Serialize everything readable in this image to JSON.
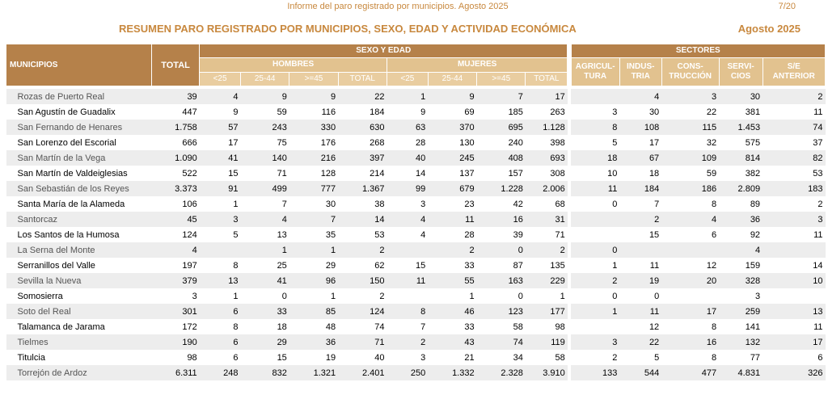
{
  "header": {
    "report_title": "Informe del paro registrado por municipios. Agosto 2025",
    "page_number": "7/20",
    "main_title": "RESUMEN PARO REGISTRADO POR MUNICIPIOS, SEXO, EDAD Y ACTIVIDAD ECONÓMICA",
    "period": "Agosto 2025"
  },
  "table_headers": {
    "municipios": "MUNICIPIOS",
    "total": "TOTAL",
    "sexo_edad": "SEXO Y EDAD",
    "sectores": "SECTORES",
    "hombres": "HOMBRES",
    "mujeres": "MUJERES",
    "age_lt25": "<25",
    "age_25_44": "25-44",
    "age_ge45": ">=45",
    "sub_total": "TOTAL",
    "agricultura_1": "AGRICUL-",
    "agricultura_2": "TURA",
    "industria_1": "INDUS-",
    "industria_2": "TRIA",
    "construccion_1": "CONS-",
    "construccion_2": "TRUCCIÓN",
    "servicios_1": "SERVI-",
    "servicios_2": "CIOS",
    "sin_empleo_1": "S/E",
    "sin_empleo_2": "ANTERIOR"
  },
  "rows": [
    {
      "municipio": "Rozas de Puerto Real",
      "total": "39",
      "h_lt25": "4",
      "h_25_44": "9",
      "h_ge45": "9",
      "h_total": "22",
      "m_lt25": "1",
      "m_25_44": "9",
      "m_ge45": "7",
      "m_total": "17",
      "agricultura": "",
      "industria": "4",
      "construccion": "3",
      "servicios": "30",
      "sin_empleo": "2"
    },
    {
      "municipio": "San Agustín de Guadalix",
      "total": "447",
      "h_lt25": "9",
      "h_25_44": "59",
      "h_ge45": "116",
      "h_total": "184",
      "m_lt25": "9",
      "m_25_44": "69",
      "m_ge45": "185",
      "m_total": "263",
      "agricultura": "3",
      "industria": "30",
      "construccion": "22",
      "servicios": "381",
      "sin_empleo": "11"
    },
    {
      "municipio": "San Fernando de Henares",
      "total": "1.758",
      "h_lt25": "57",
      "h_25_44": "243",
      "h_ge45": "330",
      "h_total": "630",
      "m_lt25": "63",
      "m_25_44": "370",
      "m_ge45": "695",
      "m_total": "1.128",
      "agricultura": "8",
      "industria": "108",
      "construccion": "115",
      "servicios": "1.453",
      "sin_empleo": "74"
    },
    {
      "municipio": "San Lorenzo del Escorial",
      "total": "666",
      "h_lt25": "17",
      "h_25_44": "75",
      "h_ge45": "176",
      "h_total": "268",
      "m_lt25": "28",
      "m_25_44": "130",
      "m_ge45": "240",
      "m_total": "398",
      "agricultura": "5",
      "industria": "17",
      "construccion": "32",
      "servicios": "575",
      "sin_empleo": "37"
    },
    {
      "municipio": "San Martín de la Vega",
      "total": "1.090",
      "h_lt25": "41",
      "h_25_44": "140",
      "h_ge45": "216",
      "h_total": "397",
      "m_lt25": "40",
      "m_25_44": "245",
      "m_ge45": "408",
      "m_total": "693",
      "agricultura": "18",
      "industria": "67",
      "construccion": "109",
      "servicios": "814",
      "sin_empleo": "82"
    },
    {
      "municipio": "San Martín de Valdeiglesias",
      "total": "522",
      "h_lt25": "15",
      "h_25_44": "71",
      "h_ge45": "128",
      "h_total": "214",
      "m_lt25": "14",
      "m_25_44": "137",
      "m_ge45": "157",
      "m_total": "308",
      "agricultura": "10",
      "industria": "18",
      "construccion": "59",
      "servicios": "382",
      "sin_empleo": "53"
    },
    {
      "municipio": "San Sebastián de los Reyes",
      "total": "3.373",
      "h_lt25": "91",
      "h_25_44": "499",
      "h_ge45": "777",
      "h_total": "1.367",
      "m_lt25": "99",
      "m_25_44": "679",
      "m_ge45": "1.228",
      "m_total": "2.006",
      "agricultura": "11",
      "industria": "184",
      "construccion": "186",
      "servicios": "2.809",
      "sin_empleo": "183"
    },
    {
      "municipio": "Santa María de la Alameda",
      "total": "106",
      "h_lt25": "1",
      "h_25_44": "7",
      "h_ge45": "30",
      "h_total": "38",
      "m_lt25": "3",
      "m_25_44": "23",
      "m_ge45": "42",
      "m_total": "68",
      "agricultura": "0",
      "industria": "7",
      "construccion": "8",
      "servicios": "89",
      "sin_empleo": "2"
    },
    {
      "municipio": "Santorcaz",
      "total": "45",
      "h_lt25": "3",
      "h_25_44": "4",
      "h_ge45": "7",
      "h_total": "14",
      "m_lt25": "4",
      "m_25_44": "11",
      "m_ge45": "16",
      "m_total": "31",
      "agricultura": "",
      "industria": "2",
      "construccion": "4",
      "servicios": "36",
      "sin_empleo": "3"
    },
    {
      "municipio": "Los Santos de la Humosa",
      "total": "124",
      "h_lt25": "5",
      "h_25_44": "13",
      "h_ge45": "35",
      "h_total": "53",
      "m_lt25": "4",
      "m_25_44": "28",
      "m_ge45": "39",
      "m_total": "71",
      "agricultura": "",
      "industria": "15",
      "construccion": "6",
      "servicios": "92",
      "sin_empleo": "11"
    },
    {
      "municipio": "La Serna del Monte",
      "total": "4",
      "h_lt25": "",
      "h_25_44": "1",
      "h_ge45": "1",
      "h_total": "2",
      "m_lt25": "",
      "m_25_44": "2",
      "m_ge45": "0",
      "m_total": "2",
      "agricultura": "0",
      "industria": "",
      "construccion": "",
      "servicios": "4",
      "sin_empleo": ""
    },
    {
      "municipio": "Serranillos del Valle",
      "total": "197",
      "h_lt25": "8",
      "h_25_44": "25",
      "h_ge45": "29",
      "h_total": "62",
      "m_lt25": "15",
      "m_25_44": "33",
      "m_ge45": "87",
      "m_total": "135",
      "agricultura": "1",
      "industria": "11",
      "construccion": "12",
      "servicios": "159",
      "sin_empleo": "14"
    },
    {
      "municipio": "Sevilla la Nueva",
      "total": "379",
      "h_lt25": "13",
      "h_25_44": "41",
      "h_ge45": "96",
      "h_total": "150",
      "m_lt25": "11",
      "m_25_44": "55",
      "m_ge45": "163",
      "m_total": "229",
      "agricultura": "2",
      "industria": "19",
      "construccion": "20",
      "servicios": "328",
      "sin_empleo": "10"
    },
    {
      "municipio": "Somosierra",
      "total": "3",
      "h_lt25": "1",
      "h_25_44": "0",
      "h_ge45": "1",
      "h_total": "2",
      "m_lt25": "",
      "m_25_44": "1",
      "m_ge45": "0",
      "m_total": "1",
      "agricultura": "0",
      "industria": "0",
      "construccion": "",
      "servicios": "3",
      "sin_empleo": ""
    },
    {
      "municipio": "Soto del Real",
      "total": "301",
      "h_lt25": "6",
      "h_25_44": "33",
      "h_ge45": "85",
      "h_total": "124",
      "m_lt25": "8",
      "m_25_44": "46",
      "m_ge45": "123",
      "m_total": "177",
      "agricultura": "1",
      "industria": "11",
      "construccion": "17",
      "servicios": "259",
      "sin_empleo": "13"
    },
    {
      "municipio": "Talamanca de Jarama",
      "total": "172",
      "h_lt25": "8",
      "h_25_44": "18",
      "h_ge45": "48",
      "h_total": "74",
      "m_lt25": "7",
      "m_25_44": "33",
      "m_ge45": "58",
      "m_total": "98",
      "agricultura": "",
      "industria": "12",
      "construccion": "8",
      "servicios": "141",
      "sin_empleo": "11"
    },
    {
      "municipio": "Tielmes",
      "total": "190",
      "h_lt25": "6",
      "h_25_44": "29",
      "h_ge45": "36",
      "h_total": "71",
      "m_lt25": "2",
      "m_25_44": "43",
      "m_ge45": "74",
      "m_total": "119",
      "agricultura": "3",
      "industria": "22",
      "construccion": "16",
      "servicios": "132",
      "sin_empleo": "17"
    },
    {
      "municipio": "Titulcia",
      "total": "98",
      "h_lt25": "6",
      "h_25_44": "15",
      "h_ge45": "19",
      "h_total": "40",
      "m_lt25": "3",
      "m_25_44": "21",
      "m_ge45": "34",
      "m_total": "58",
      "agricultura": "2",
      "industria": "5",
      "construccion": "8",
      "servicios": "77",
      "sin_empleo": "6"
    },
    {
      "municipio": "Torrejón de Ardoz",
      "total": "6.311",
      "h_lt25": "248",
      "h_25_44": "832",
      "h_ge45": "1.321",
      "h_total": "2.401",
      "m_lt25": "250",
      "m_25_44": "1.332",
      "m_ge45": "2.328",
      "m_total": "3.910",
      "agricultura": "133",
      "industria": "544",
      "construccion": "477",
      "servicios": "4.831",
      "sin_empleo": "326"
    }
  ]
}
